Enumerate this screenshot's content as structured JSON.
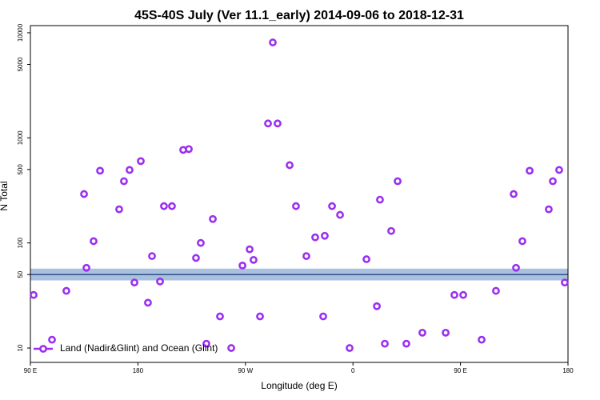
{
  "chart_data": {
    "type": "scatter",
    "title": "45S-40S July (Ver 11.1_early)   2014-09-06 to 2018-12-31",
    "x_label": "Longitude (deg E)",
    "y_label": "N Total",
    "log_y": true,
    "xlim": [
      90,
      540
    ],
    "ylim": [
      7.3,
      11700
    ],
    "xticks": [
      {
        "value": 90,
        "label": "90 E"
      },
      {
        "value": 180,
        "label": "180"
      },
      {
        "value": 270,
        "label": "90 W"
      },
      {
        "value": 360,
        "label": "0"
      },
      {
        "value": 450,
        "label": "90 E"
      },
      {
        "value": 540,
        "label": "180"
      }
    ],
    "yticks": [
      10,
      50,
      100,
      500,
      1000,
      5000,
      10000
    ],
    "reference_band": {
      "low": 44,
      "high": 57,
      "line": 50,
      "color": "#a9c0de",
      "line_color": "#2e4f86"
    },
    "legend": "bottom-left",
    "series": [
      {
        "name": "Land (Nadir&Glint) and Ocean (Glint)",
        "color": "#9b30f0",
        "x": [
          92.7,
          108.1,
          120.1,
          134.9,
          136.9,
          142.9,
          148.3,
          164.3,
          168.3,
          173.0,
          177.1,
          182.4,
          188.4,
          191.8,
          198.5,
          201.8,
          208.5,
          217.9,
          222.6,
          228.6,
          232.6,
          237.3,
          242.7,
          248.7,
          258.1,
          267.5,
          273.5,
          276.8,
          282.2,
          288.9,
          292.9,
          296.9,
          307.0,
          312.3,
          321.0,
          328.4,
          335.1,
          336.4,
          342.5,
          349.2,
          357.2,
          371.3,
          380.0,
          382.6,
          386.7,
          392.0,
          397.4,
          404.7,
          418.1,
          437.6,
          444.9,
          452.3,
          467.7,
          479.7,
          494.5,
          496.5,
          501.8,
          507.9,
          523.9,
          527.3,
          532.6,
          537.3
        ],
        "values": [
          32,
          12,
          35,
          292,
          58,
          104,
          487,
          209,
          387,
          495,
          42,
          601,
          27,
          75,
          43,
          224,
          224,
          768,
          782,
          72,
          100,
          11,
          169,
          20,
          10,
          61,
          87,
          69,
          20,
          1371,
          8090,
          1371,
          550,
          224,
          75,
          113,
          20,
          117,
          224,
          185,
          10,
          70,
          25,
          258,
          11,
          130,
          387,
          11,
          14,
          14,
          32,
          32,
          12,
          35,
          292,
          58,
          104,
          487,
          209,
          387,
          495,
          42
        ]
      }
    ]
  }
}
